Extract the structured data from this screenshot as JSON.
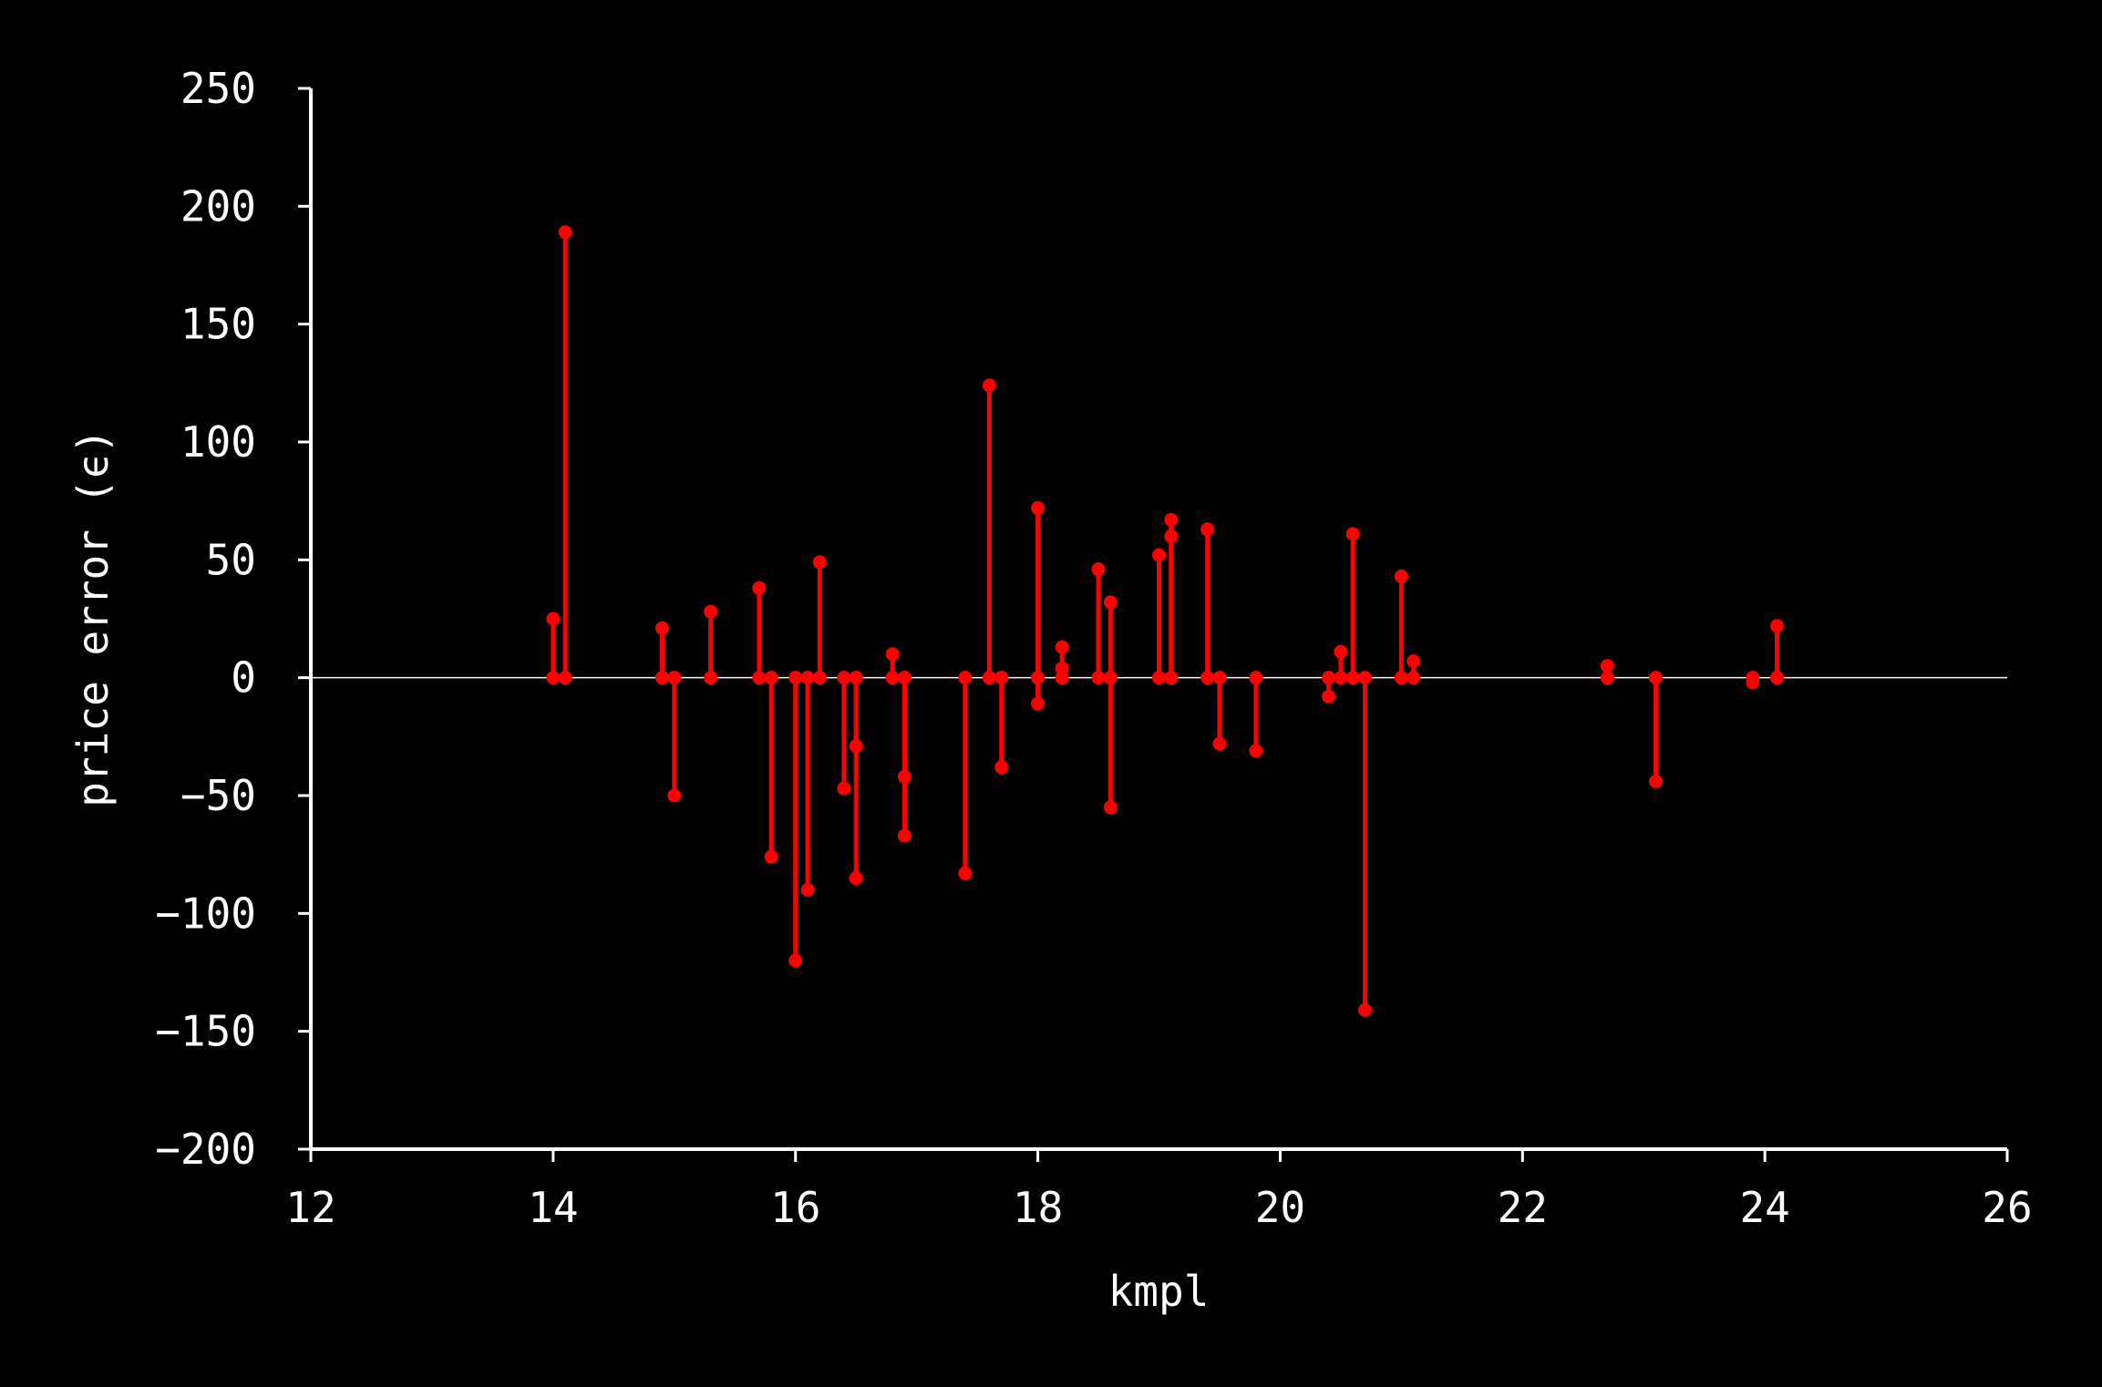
{
  "chart_data": {
    "type": "stem",
    "xlabel": "kmpl",
    "ylabel": "price error (ϵ)",
    "xlim": [
      12,
      26
    ],
    "ylim": [
      -200,
      250
    ],
    "x_ticks": [
      "12",
      "14",
      "16",
      "18",
      "20",
      "22",
      "24",
      "26"
    ],
    "y_ticks": [
      "250",
      "200",
      "150",
      "100",
      "50",
      "0",
      "−50",
      "−100",
      "−150",
      "−200"
    ],
    "baseline": 0,
    "grid": false,
    "colors": {
      "stem": "#ff0000",
      "axes": "#ffffff",
      "background": "#000000"
    },
    "points": [
      {
        "x": 14.0,
        "y": 25
      },
      {
        "x": 14.1,
        "y": 189
      },
      {
        "x": 14.9,
        "y": 21
      },
      {
        "x": 15.0,
        "y": -50
      },
      {
        "x": 15.3,
        "y": 28
      },
      {
        "x": 15.7,
        "y": 38
      },
      {
        "x": 15.8,
        "y": -76
      },
      {
        "x": 16.0,
        "y": -120
      },
      {
        "x": 16.1,
        "y": -90
      },
      {
        "x": 16.2,
        "y": 49
      },
      {
        "x": 16.4,
        "y": -47
      },
      {
        "x": 16.5,
        "y": -29
      },
      {
        "x": 16.5,
        "y": -85
      },
      {
        "x": 16.8,
        "y": 10
      },
      {
        "x": 16.9,
        "y": -42
      },
      {
        "x": 16.9,
        "y": -67
      },
      {
        "x": 17.4,
        "y": -83
      },
      {
        "x": 17.6,
        "y": 124
      },
      {
        "x": 17.7,
        "y": -38
      },
      {
        "x": 18.0,
        "y": 72
      },
      {
        "x": 18.0,
        "y": -11
      },
      {
        "x": 18.2,
        "y": 13
      },
      {
        "x": 18.2,
        "y": 4
      },
      {
        "x": 18.5,
        "y": 46
      },
      {
        "x": 18.6,
        "y": 32
      },
      {
        "x": 18.6,
        "y": -55
      },
      {
        "x": 19.0,
        "y": 52
      },
      {
        "x": 19.1,
        "y": 67
      },
      {
        "x": 19.1,
        "y": 60
      },
      {
        "x": 19.4,
        "y": 63
      },
      {
        "x": 19.5,
        "y": -28
      },
      {
        "x": 19.8,
        "y": -31
      },
      {
        "x": 20.4,
        "y": -8
      },
      {
        "x": 20.5,
        "y": 11
      },
      {
        "x": 20.6,
        "y": 61
      },
      {
        "x": 20.7,
        "y": -141
      },
      {
        "x": 21.0,
        "y": 43
      },
      {
        "x": 21.1,
        "y": 7
      },
      {
        "x": 22.7,
        "y": 5
      },
      {
        "x": 23.1,
        "y": -44
      },
      {
        "x": 23.9,
        "y": -2
      },
      {
        "x": 24.1,
        "y": 22
      }
    ]
  }
}
